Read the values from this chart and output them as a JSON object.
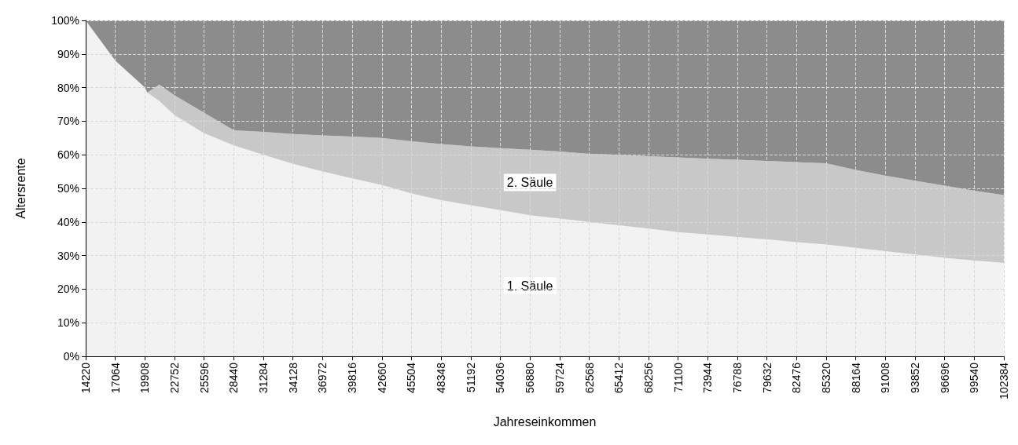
{
  "chart_data": {
    "type": "area",
    "stacked": true,
    "xlabel": "Jahreseinkommen",
    "ylabel": "Altersrente",
    "x": [
      14220,
      17064,
      19908,
      20139,
      21292,
      22752,
      25596,
      28440,
      31284,
      34128,
      36972,
      39816,
      42660,
      45504,
      48348,
      51192,
      54036,
      56880,
      59724,
      62568,
      65412,
      68256,
      71100,
      73944,
      76788,
      79632,
      82476,
      85320,
      88164,
      91008,
      93852,
      96696,
      99540,
      102384
    ],
    "series": [
      {
        "name": "1. Säule",
        "color": "#f2f2f2",
        "values": [
          100,
          88,
          80,
          78.5,
          76,
          71.8,
          66.4,
          62.8,
          60,
          57.3,
          55,
          53,
          51,
          48.5,
          46.5,
          45,
          43.5,
          42,
          41,
          40,
          39,
          38,
          37,
          36.3,
          35.5,
          34.8,
          34,
          33.3,
          32.3,
          31.3,
          30.3,
          29.3,
          28.5,
          27.8
        ]
      },
      {
        "name": "2. Säule",
        "color": "#c8c8c8",
        "values": [
          0,
          0,
          0,
          0,
          4.9,
          5.9,
          6.1,
          4.5,
          6.8,
          8.9,
          10.8,
          12.4,
          14,
          15.5,
          16.7,
          17.5,
          18.5,
          19.5,
          20,
          20.3,
          21,
          21.6,
          22.2,
          22.5,
          23,
          23.4,
          23.8,
          24.2,
          23.2,
          22.5,
          22,
          21.5,
          20.8,
          20.2
        ]
      },
      {
        "color": "#8c8c8c",
        "values": [
          0,
          12,
          20,
          21.5,
          19.1,
          22.3,
          27.5,
          32.7,
          33.2,
          33.8,
          34.2,
          34.6,
          35,
          36,
          36.8,
          37.5,
          38,
          38.5,
          39,
          39.7,
          40,
          40.4,
          40.8,
          41.2,
          41.5,
          41.8,
          42.2,
          42.5,
          44.5,
          46.2,
          47.7,
          49.2,
          50.7,
          52
        ]
      }
    ],
    "xlim": [
      14220,
      102384
    ],
    "xticks": [
      14220,
      17064,
      19908,
      22752,
      25596,
      28440,
      31284,
      34128,
      36972,
      39816,
      42660,
      45504,
      48348,
      51192,
      54036,
      56880,
      59724,
      62568,
      65412,
      68256,
      71100,
      73944,
      76788,
      79632,
      82476,
      85320,
      88164,
      91008,
      93852,
      96696,
      99540,
      102384
    ],
    "ylim": [
      0,
      100
    ],
    "yticks": [
      {
        "value": 0,
        "label": "0%"
      },
      {
        "value": 10,
        "label": "10%"
      },
      {
        "value": 20,
        "label": "20%"
      },
      {
        "value": 30,
        "label": "30%"
      },
      {
        "value": 40,
        "label": "40%"
      },
      {
        "value": 50,
        "label": "50%"
      },
      {
        "value": 60,
        "label": "60%"
      },
      {
        "value": 70,
        "label": "70%"
      },
      {
        "value": 80,
        "label": "80%"
      },
      {
        "value": 90,
        "label": "90%"
      },
      {
        "value": 100,
        "label": "100%"
      }
    ],
    "grid": true
  }
}
